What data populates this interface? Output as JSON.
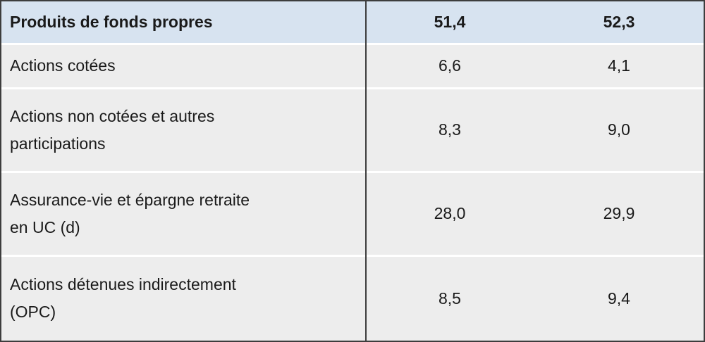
{
  "chart_data": {
    "type": "table",
    "columns": [
      "Produits de fonds propres",
      "51,4",
      "52,3"
    ],
    "rows": [
      [
        "Actions cotées",
        "6,6",
        "4,1"
      ],
      [
        "Actions non cotées et autres participations",
        "8,3",
        "9,0"
      ],
      [
        "Assurance-vie et épargne retraite en UC (d)",
        "28,0",
        "29,9"
      ],
      [
        "Actions détenues indirectement (OPC)",
        "8,5",
        "9,4"
      ]
    ]
  },
  "colors": {
    "header_bg": "#d7e3f0",
    "row_bg": "#ededed",
    "border": "#3d3d3d",
    "separator": "#ffffff",
    "text": "#1a1a1a"
  }
}
